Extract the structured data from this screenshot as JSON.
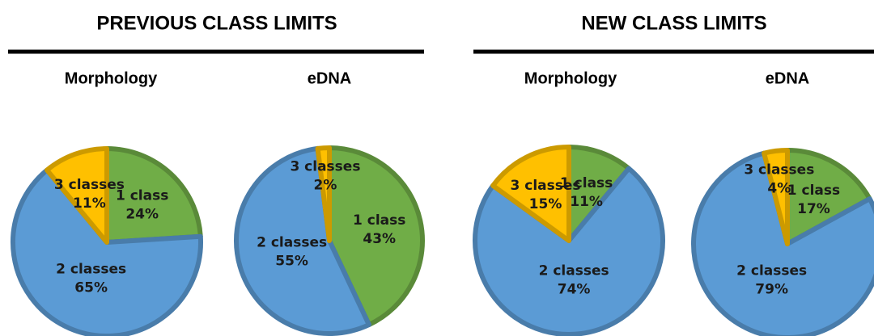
{
  "headers": [
    "PREVIOUS CLASS LIMITS",
    "NEW CLASS LIMITS"
  ],
  "chart_data": [
    {
      "type": "pie",
      "title": "Morphology",
      "categories": [
        "1 class",
        "2 classes",
        "3 classes"
      ],
      "values": [
        24,
        65,
        11
      ],
      "value_labels": [
        "24%",
        "65%",
        "11%"
      ],
      "colors": [
        "#70ad47",
        "#5b9bd5",
        "#ffc000"
      ]
    },
    {
      "type": "pie",
      "title": "eDNA",
      "categories": [
        "1 class",
        "2 classes",
        "3 classes"
      ],
      "values": [
        43,
        55,
        2
      ],
      "value_labels": [
        "43%",
        "55%",
        "2%"
      ],
      "colors": [
        "#70ad47",
        "#5b9bd5",
        "#ffc000"
      ]
    },
    {
      "type": "pie",
      "title": "Morphology",
      "categories": [
        "1 class",
        "2 classes",
        "3 classes"
      ],
      "values": [
        11,
        74,
        15
      ],
      "value_labels": [
        "11%",
        "74%",
        "15%"
      ],
      "colors": [
        "#70ad47",
        "#5b9bd5",
        "#ffc000"
      ]
    },
    {
      "type": "pie",
      "title": "eDNA",
      "categories": [
        "1 class",
        "2 classes",
        "3 classes"
      ],
      "values": [
        17,
        79,
        4
      ],
      "value_labels": [
        "17%",
        "79%",
        "4%"
      ],
      "colors": [
        "#70ad47",
        "#5b9bd5",
        "#ffc000"
      ]
    }
  ]
}
